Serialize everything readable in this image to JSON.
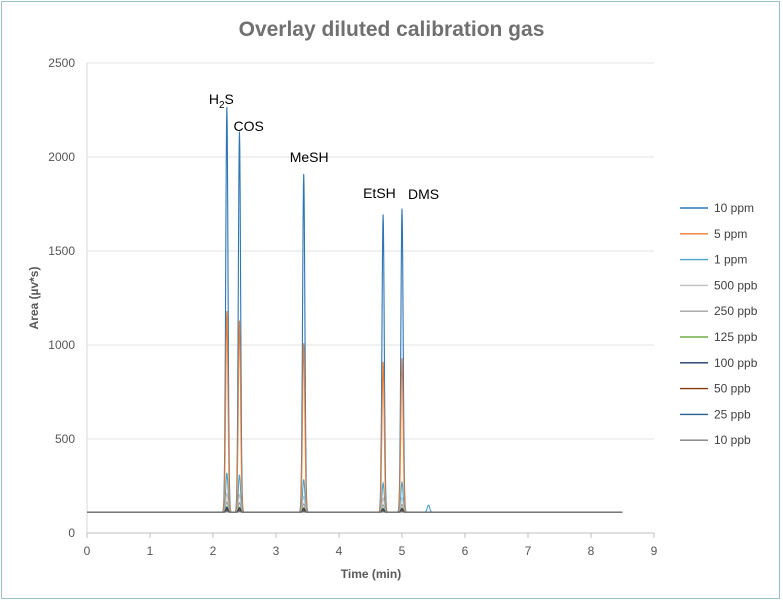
{
  "chart_data": {
    "type": "line",
    "title": "Overlay diluted calibration gas",
    "xlabel": "Time (min)",
    "ylabel": "Area (µv*s)",
    "xlim": [
      0,
      9
    ],
    "ylim": [
      0,
      2500
    ],
    "x_ticks": [
      "0",
      "1",
      "2",
      "3",
      "4",
      "5",
      "6",
      "7",
      "8",
      "9"
    ],
    "y_ticks": [
      "0",
      "500",
      "1000",
      "1500",
      "2000",
      "2500"
    ],
    "grid": "horizontal",
    "legend_position": "right",
    "baseline": 110,
    "x_end": 8.5,
    "peak_labels": [
      {
        "name": "H",
        "sub": "2",
        "tail": "S",
        "x": 2.22
      },
      {
        "name": "COS",
        "x": 2.42
      },
      {
        "name": "MeSH",
        "x": 3.44
      },
      {
        "name": "EtSH",
        "x": 4.7
      },
      {
        "name": "DMS",
        "x": 5.0
      }
    ],
    "peak_times": [
      2.22,
      2.42,
      3.44,
      4.7,
      5.0
    ],
    "series": [
      {
        "name": "10 ppm",
        "color": "#2e75b6",
        "peaks": [
          2265,
          2135,
          1910,
          1695,
          1725
        ]
      },
      {
        "name": "5 ppm",
        "color": "#ed7d31",
        "peaks": [
          1180,
          1130,
          1010,
          910,
          930
        ]
      },
      {
        "name": "1 ppm",
        "color": "#4aa3c8",
        "peaks": [
          320,
          310,
          285,
          265,
          270
        ]
      },
      {
        "name": "500 ppb",
        "color": "#c0c0c0",
        "peaks": [
          210,
          205,
          195,
          185,
          188
        ]
      },
      {
        "name": "250 ppb",
        "color": "#a0a0a0",
        "peaks": [
          165,
          162,
          155,
          150,
          152
        ]
      },
      {
        "name": "125 ppb",
        "color": "#70ad47",
        "peaks": [
          140,
          138,
          135,
          132,
          133
        ]
      },
      {
        "name": "100 ppb",
        "color": "#1f3864",
        "peaks": [
          135,
          133,
          130,
          128,
          129
        ]
      },
      {
        "name": "50 ppb",
        "color": "#843c0c",
        "peaks": [
          125,
          124,
          122,
          120,
          121
        ]
      },
      {
        "name": "25 ppb",
        "color": "#2e5f8a",
        "peaks": [
          118,
          117,
          116,
          115,
          115
        ]
      },
      {
        "name": "10 ppb",
        "color": "#7f7f7f",
        "peaks": [
          113,
          113,
          112,
          112,
          112
        ]
      }
    ],
    "extra_peak": {
      "x": 5.42,
      "series": "1 ppm",
      "height": 148
    }
  }
}
